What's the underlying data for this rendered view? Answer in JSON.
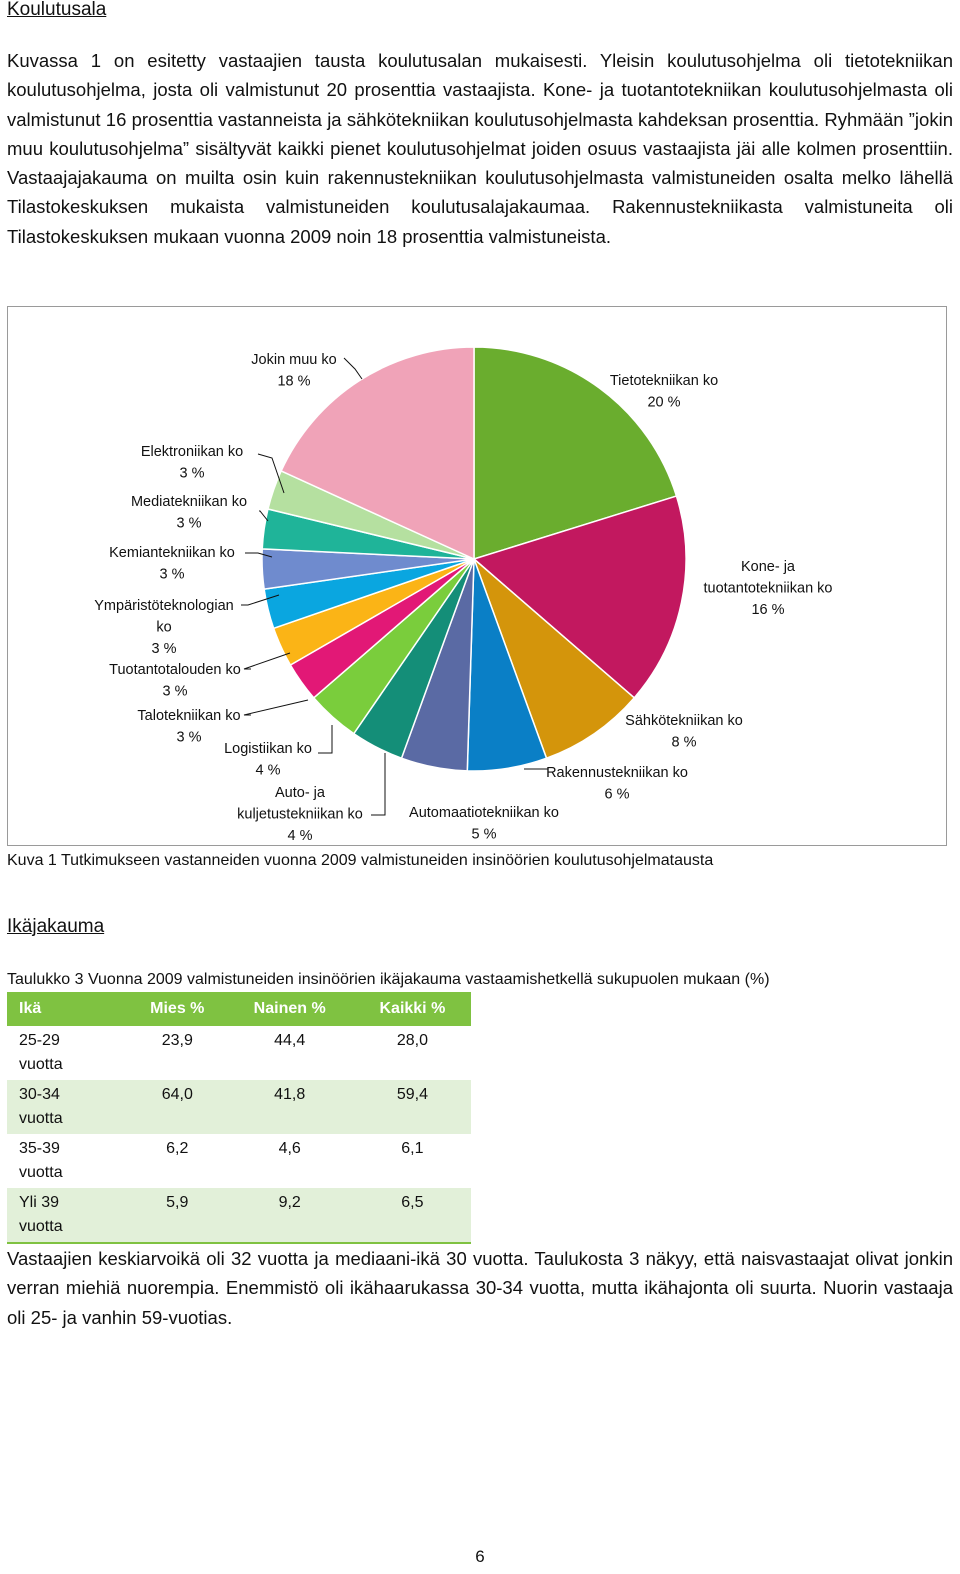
{
  "section1": {
    "heading": "Koulutusala",
    "paragraph": "Kuvassa 1 on esitetty vastaajien tausta koulutusalan mukaisesti. Yleisin koulutusohjelma oli tietotekniikan koulutusohjelma, josta oli valmistunut 20 prosenttia vastaajista. Kone- ja tuotantotekniikan koulutusohjelmasta oli valmistunut 16 prosenttia vastanneista ja sähköteknii­kan koulutusohjelmasta kahdeksan prosenttia. Ryhmään ”jokin muu koulutusohjelma” sisältyvät kaikki pienet koulutusohjelmat joiden osuus vastaajista jäi alle kolmen prosenttiin. Vastaajaja­kauma on muilta osin kuin rakennustekniikan koulutusohjelmasta valmistuneiden osalta melko lähellä Tilastokeskuksen mukaista valmistuneiden koulutusalajakaumaa. Rakennustekniikasta valmistuneita oli Tilastokeskuksen mukaan vuonna 2009 noin 18 prosenttia valmistuneista."
  },
  "chart_data": {
    "type": "pie",
    "title": "",
    "slices": [
      {
        "label": [
          "Tietotekniikan ko",
          "20 %"
        ],
        "value": 20,
        "color": "#6aad2e"
      },
      {
        "label": [
          "Kone- ja",
          "tuotantotekniikan ko",
          "16 %"
        ],
        "value": 16,
        "color": "#c2185f"
      },
      {
        "label": [
          "Sähkötekniikan ko",
          "8 %"
        ],
        "value": 8,
        "color": "#d4950b"
      },
      {
        "label": [
          "Rakennustekniikan ko",
          "6 %"
        ],
        "value": 6,
        "color": "#0a7fc6"
      },
      {
        "label": [
          "Automaatiotekniikan ko",
          "5 %"
        ],
        "value": 5,
        "color": "#5a6aa4"
      },
      {
        "label": [
          "Auto- ja",
          "kuljetustekniikan ko",
          "4 %"
        ],
        "value": 4,
        "color": "#148e78"
      },
      {
        "label": [
          "Logistiikan ko",
          "4 %"
        ],
        "value": 4,
        "color": "#7acd3c"
      },
      {
        "label": [
          "Talotekniikan ko",
          "3 %"
        ],
        "value": 3,
        "color": "#e21876"
      },
      {
        "label": [
          "Tuotantotalouden ko",
          "3 %"
        ],
        "value": 3,
        "color": "#fbb416"
      },
      {
        "label": [
          "Ympäristöteknologian",
          "ko",
          "3 %"
        ],
        "value": 3,
        "color": "#0aa6e0"
      },
      {
        "label": [
          "Kemiantekniikan ko",
          "3 %"
        ],
        "value": 3,
        "color": "#6f8bce"
      },
      {
        "label": [
          "Mediatekniikan ko",
          "3 %"
        ],
        "value": 3,
        "color": "#1fb499"
      },
      {
        "label": [
          "Elektroniikan ko",
          "3 %"
        ],
        "value": 3,
        "color": "#b5e0a0"
      },
      {
        "label": [
          "Jokin muu ko",
          "18 %"
        ],
        "value": 18,
        "color": "#f0a3b8"
      }
    ]
  },
  "figure_caption": "Kuva 1 Tutkimukseen vastanneiden vuonna 2009 valmistuneiden insinöörien koulutusohjelmatausta",
  "section2": {
    "heading": "Ikäjakauma",
    "table_caption": "Taulukko 3 Vuonna 2009 valmistuneiden insinöörien ikäjakauma vastaamishetkellä sukupuolen mukaan (%)",
    "table": {
      "headers": [
        "Ikä",
        "Mies %",
        "Nainen %",
        "Kaikki %"
      ],
      "rows": [
        {
          "age": [
            "25-29",
            "vuotta"
          ],
          "values": [
            "23,9",
            "44,4",
            "28,0"
          ]
        },
        {
          "age": [
            "30-34",
            "vuotta"
          ],
          "values": [
            "64,0",
            "41,8",
            "59,4"
          ]
        },
        {
          "age": [
            "35-39",
            "vuotta"
          ],
          "values": [
            "6,2",
            "4,6",
            "6,1"
          ]
        },
        {
          "age": [
            "Yli 39",
            "vuotta"
          ],
          "values": [
            "5,9",
            "9,2",
            "6,5"
          ]
        }
      ]
    },
    "paragraph": "Vastaajien keskiarvoikä oli 32 vuotta ja mediaani-ikä 30 vuotta. Taulukosta 3 näkyy, että naisvastaajat olivat jonkin verran miehiä nuorempia. Enemmistö oli ikähaarukassa 30-34 vuotta, mutta ikähajonta oli suurta. Nuorin vastaaja oli 25- ja vanhin 59-vuotias."
  },
  "page_number": "6"
}
